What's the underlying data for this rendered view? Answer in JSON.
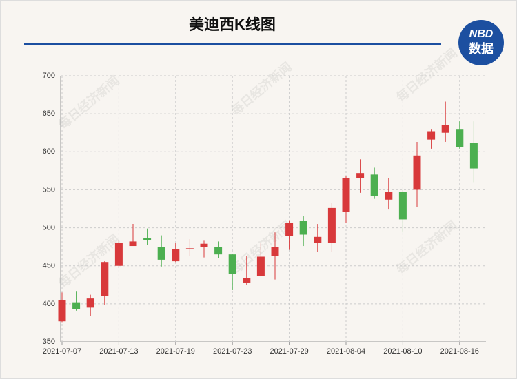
{
  "chart_data": {
    "type": "candlestick",
    "title": "美迪西K线图",
    "logo": {
      "top": "NBD",
      "bottom": "数据"
    },
    "watermark": "每日经济新闻",
    "categories": [
      "2021-07-07",
      null,
      null,
      null,
      "2021-07-13",
      null,
      null,
      null,
      "2021-07-19",
      null,
      null,
      null,
      "2021-07-23",
      null,
      null,
      null,
      "2021-07-29",
      null,
      null,
      null,
      "2021-08-04",
      null,
      null,
      null,
      "2021-08-10",
      null,
      null,
      null,
      "2021-08-16",
      null
    ],
    "open": [
      377,
      402,
      395,
      410,
      450,
      476,
      486,
      475,
      456,
      472,
      475,
      475,
      465,
      428,
      437,
      463,
      489,
      509,
      480,
      480,
      521,
      565,
      570,
      537,
      547,
      550,
      616,
      625,
      630,
      612
    ],
    "close": [
      405,
      393,
      407,
      455,
      480,
      482,
      484,
      458,
      472,
      473,
      479,
      465,
      439,
      434,
      462,
      475,
      506,
      491,
      488,
      526,
      565,
      572,
      542,
      547,
      511,
      595,
      627,
      635,
      606,
      578
    ],
    "high": [
      415,
      416,
      412,
      456,
      483,
      505,
      499,
      490,
      480,
      485,
      483,
      482,
      465,
      463,
      480,
      494,
      510,
      515,
      505,
      533,
      568,
      590,
      579,
      565,
      550,
      613,
      630,
      666,
      640,
      640
    ],
    "low": [
      375,
      391,
      384,
      399,
      447,
      476,
      477,
      449,
      455,
      463,
      461,
      460,
      418,
      425,
      436,
      432,
      471,
      476,
      468,
      468,
      506,
      546,
      538,
      524,
      494,
      527,
      604,
      613,
      604,
      560
    ],
    "up_color": "#d8393b",
    "down_color": "#4caf50",
    "ylim": [
      350,
      700
    ],
    "yticks": [
      350,
      400,
      450,
      500,
      550,
      600,
      650,
      700
    ],
    "grid": true
  }
}
